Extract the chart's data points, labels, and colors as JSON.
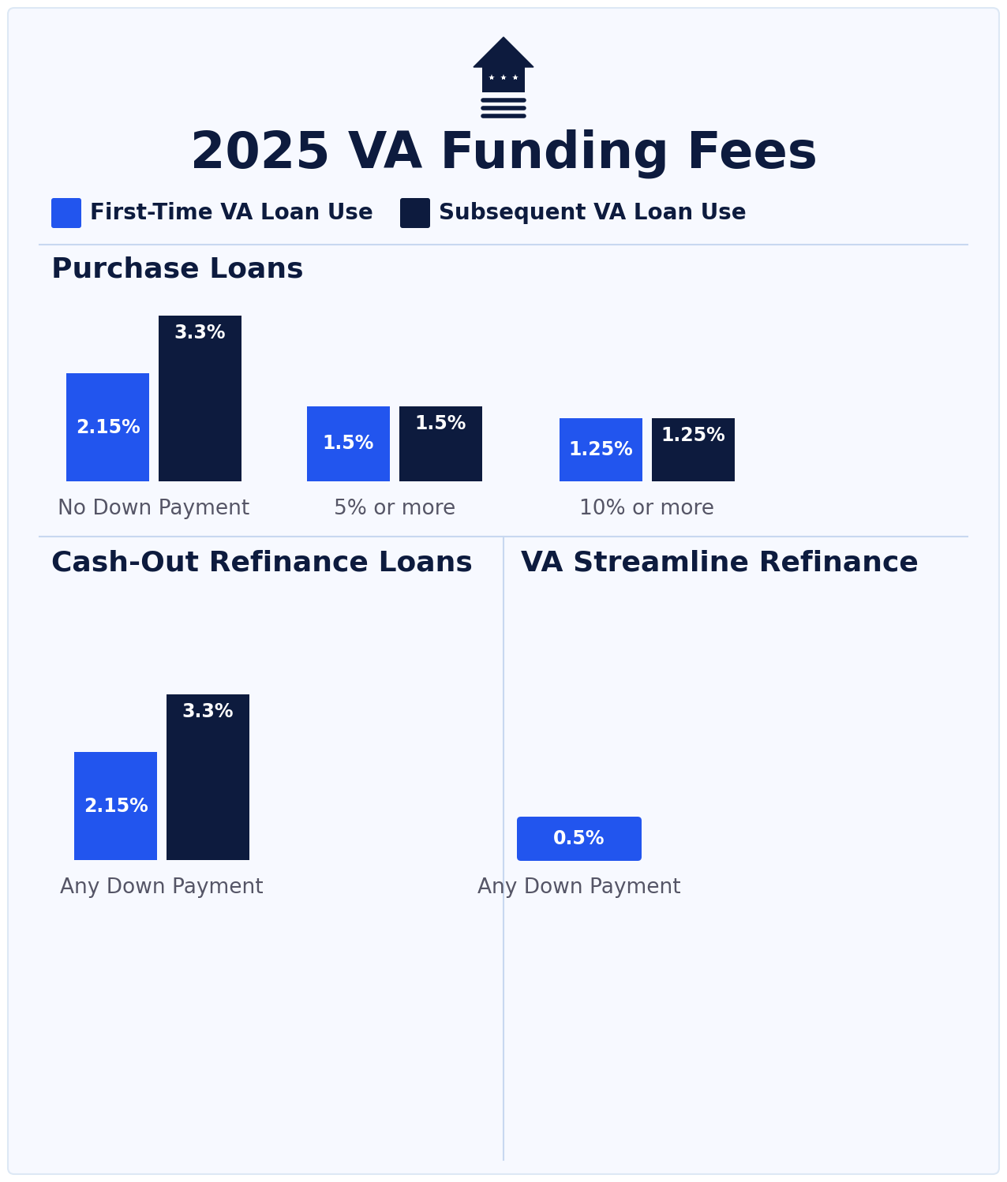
{
  "title": "2025 VA Funding Fees",
  "background_color": "#ffffff",
  "blue_color": "#2255ee",
  "dark_color": "#0d1b3e",
  "legend_first": "First-Time VA Loan Use",
  "legend_subsequent": "Subsequent VA Loan Use",
  "section_divider_color": "#c8d8f0",
  "purchase_loans_title": "Purchase Loans",
  "purchase_groups": [
    "No Down Payment",
    "5% or more",
    "10% or more"
  ],
  "purchase_first": [
    2.15,
    1.5,
    1.25
  ],
  "purchase_subsequent": [
    3.3,
    1.5,
    1.25
  ],
  "purchase_labels_first": [
    "2.15%",
    "1.5%",
    "1.25%"
  ],
  "purchase_labels_subsequent": [
    "3.3%",
    "1.5%",
    "1.25%"
  ],
  "cashout_title": "Cash-Out Refinance Loans",
  "cashout_label": "Any Down Payment",
  "cashout_first": 2.15,
  "cashout_subsequent": 3.3,
  "cashout_label_first": "2.15%",
  "cashout_label_subsequent": "3.3%",
  "streamline_title": "VA Streamline Refinance",
  "streamline_label": "Any Down Payment",
  "streamline_first": 0.5,
  "streamline_label_first": "0.5%"
}
